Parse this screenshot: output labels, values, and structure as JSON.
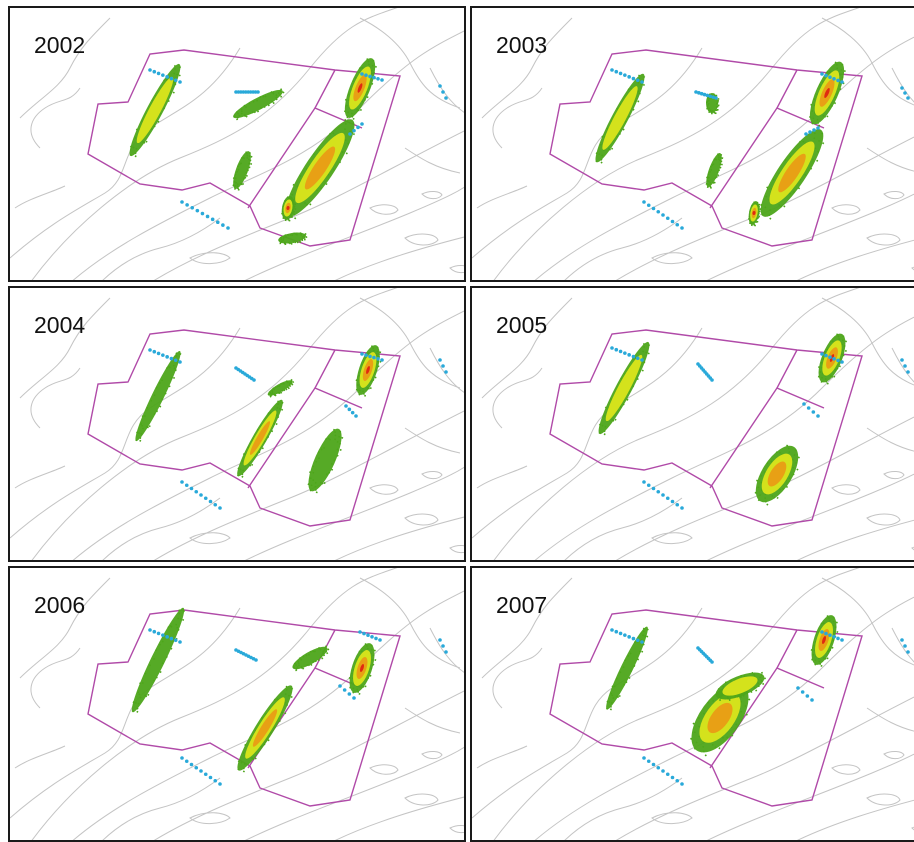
{
  "panels": [
    {
      "year": "2002"
    },
    {
      "year": "2003"
    },
    {
      "year": "2004"
    },
    {
      "year": "2005"
    },
    {
      "year": "2006"
    },
    {
      "year": "2007"
    }
  ],
  "colors": {
    "boundary": "#b04aa8",
    "contour": "#c4c4c4",
    "low_density": "#4da51a",
    "mid_density": "#d4e21c",
    "high_density": "#e8a015",
    "peak_density": "#e02a10",
    "markers": "#29a9d9"
  }
}
